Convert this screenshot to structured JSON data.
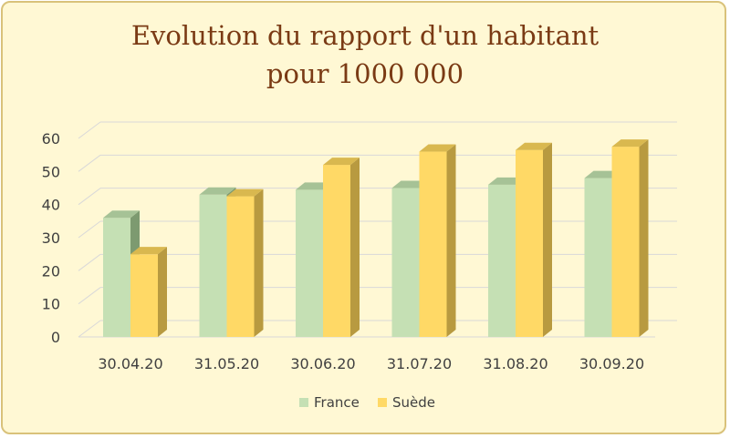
{
  "chart_data": {
    "type": "bar",
    "title_lines": [
      "Evolution du rapport d'un habitant",
      "pour 1000 000"
    ],
    "categories": [
      "30.04.20",
      "31.05.20",
      "30.06.20",
      "31.07.20",
      "31.08.20",
      "30.09.20"
    ],
    "series": [
      {
        "name": "France",
        "values": [
          36,
          43,
          44.5,
          45,
          46,
          48
        ],
        "color": "#c5e0b4",
        "side_color": "#7d9a70",
        "top_color": "#a6c296"
      },
      {
        "name": "Suède",
        "values": [
          25,
          42.5,
          52,
          56,
          56.5,
          57.5
        ],
        "color": "#ffd966",
        "side_color": "#b89a40",
        "top_color": "#d9b84f"
      }
    ],
    "ylim": [
      0,
      60
    ],
    "yticks": [
      0,
      10,
      20,
      30,
      40,
      50,
      60
    ],
    "grid": true,
    "legend_position": "bottom",
    "background": "#fff8d4",
    "title_color": "#7a3a14"
  }
}
